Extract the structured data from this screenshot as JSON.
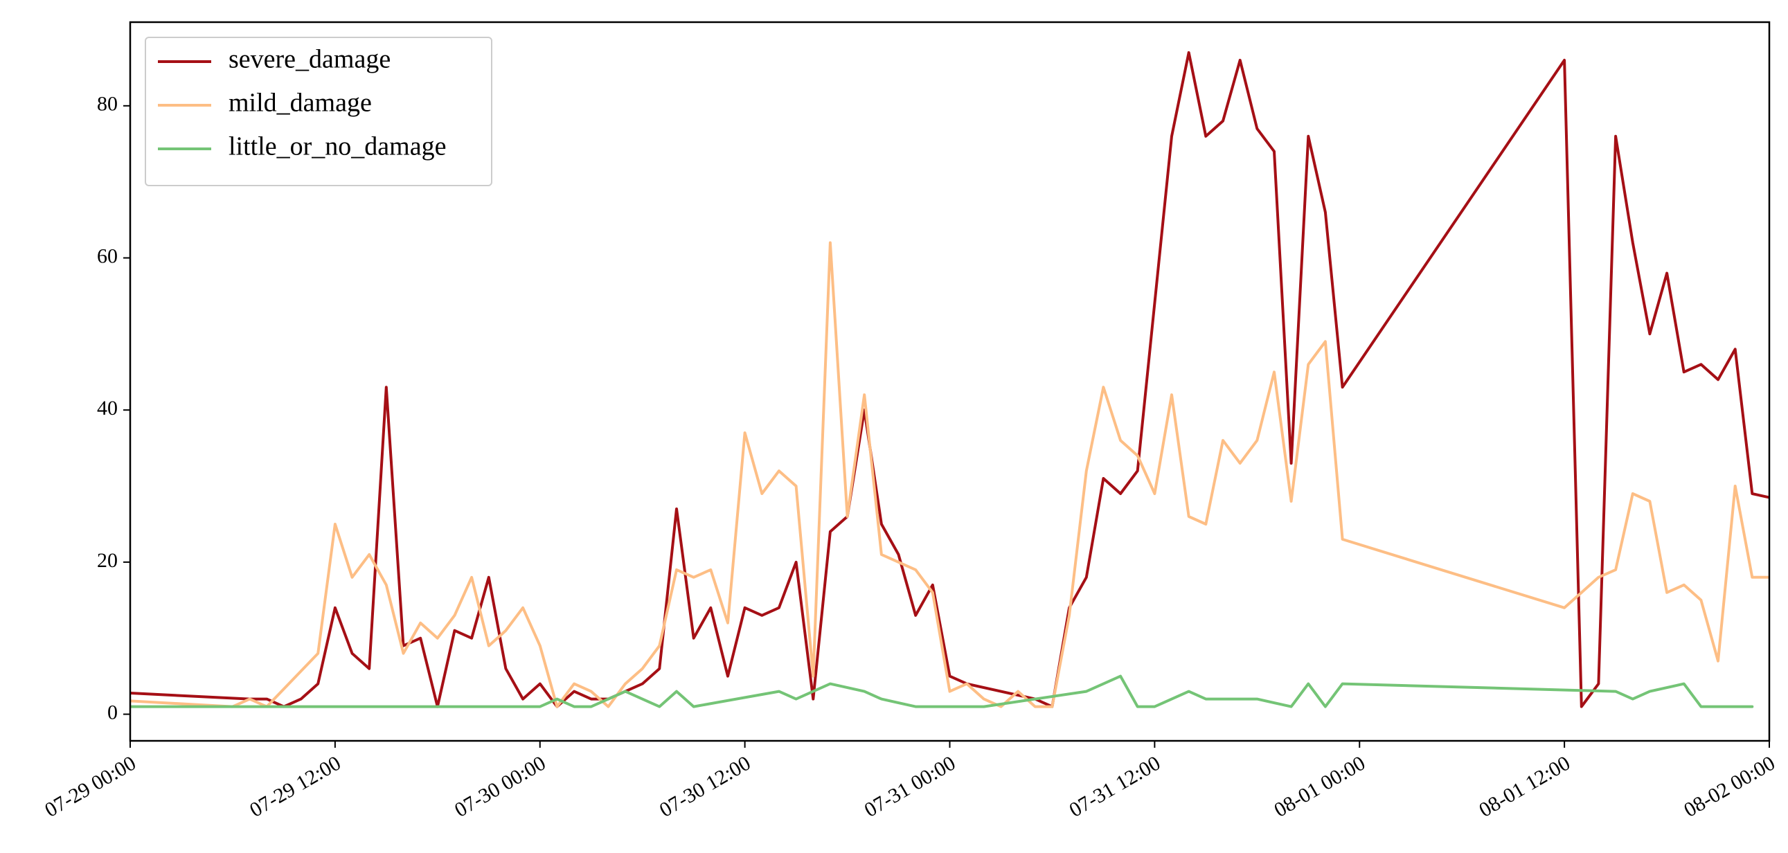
{
  "chart_data": {
    "type": "line",
    "title": "",
    "xlabel": "",
    "ylabel": "",
    "xlim": [
      "2024-07-29 00:00",
      "2024-08-02 00:00"
    ],
    "ylim": [
      -3.5,
      91
    ],
    "x_ticks": [
      {
        "t": "2024-07-29 00:00",
        "label": "07-29 00:00"
      },
      {
        "t": "2024-07-29 12:00",
        "label": "07-29 12:00"
      },
      {
        "t": "2024-07-30 00:00",
        "label": "07-30 00:00"
      },
      {
        "t": "2024-07-30 12:00",
        "label": "07-30 12:00"
      },
      {
        "t": "2024-07-31 00:00",
        "label": "07-31 00:00"
      },
      {
        "t": "2024-07-31 12:00",
        "label": "07-31 12:00"
      },
      {
        "t": "2024-08-01 00:00",
        "label": "08-01 00:00"
      },
      {
        "t": "2024-08-01 12:00",
        "label": "08-01 12:00"
      },
      {
        "t": "2024-08-02 00:00",
        "label": "08-02 00:00"
      }
    ],
    "y_ticks": [
      0,
      20,
      40,
      60,
      80
    ],
    "grid": false,
    "legend": "top-left",
    "series": [
      {
        "name": "severe_damage",
        "color": "#a50f15",
        "points": [
          [
            "2024-07-28 22:00",
            3
          ],
          [
            "2024-07-29 07:00",
            2
          ],
          [
            "2024-07-29 08:00",
            2
          ],
          [
            "2024-07-29 09:00",
            1
          ],
          [
            "2024-07-29 10:00",
            2
          ],
          [
            "2024-07-29 11:00",
            4
          ],
          [
            "2024-07-29 12:00",
            14
          ],
          [
            "2024-07-29 13:00",
            8
          ],
          [
            "2024-07-29 14:00",
            6
          ],
          [
            "2024-07-29 15:00",
            43
          ],
          [
            "2024-07-29 16:00",
            9
          ],
          [
            "2024-07-29 17:00",
            10
          ],
          [
            "2024-07-29 18:00",
            1
          ],
          [
            "2024-07-29 19:00",
            11
          ],
          [
            "2024-07-29 20:00",
            10
          ],
          [
            "2024-07-29 21:00",
            18
          ],
          [
            "2024-07-29 22:00",
            6
          ],
          [
            "2024-07-29 23:00",
            2
          ],
          [
            "2024-07-30 00:00",
            4
          ],
          [
            "2024-07-30 01:00",
            1
          ],
          [
            "2024-07-30 02:00",
            3
          ],
          [
            "2024-07-30 03:00",
            2
          ],
          [
            "2024-07-30 04:00",
            2
          ],
          [
            "2024-07-30 05:00",
            3
          ],
          [
            "2024-07-30 06:00",
            4
          ],
          [
            "2024-07-30 07:00",
            6
          ],
          [
            "2024-07-30 08:00",
            27
          ],
          [
            "2024-07-30 09:00",
            10
          ],
          [
            "2024-07-30 10:00",
            14
          ],
          [
            "2024-07-30 11:00",
            5
          ],
          [
            "2024-07-30 12:00",
            14
          ],
          [
            "2024-07-30 13:00",
            13
          ],
          [
            "2024-07-30 14:00",
            14
          ],
          [
            "2024-07-30 15:00",
            20
          ],
          [
            "2024-07-30 16:00",
            2
          ],
          [
            "2024-07-30 17:00",
            24
          ],
          [
            "2024-07-30 18:00",
            26
          ],
          [
            "2024-07-30 19:00",
            40
          ],
          [
            "2024-07-30 20:00",
            25
          ],
          [
            "2024-07-30 21:00",
            21
          ],
          [
            "2024-07-30 22:00",
            13
          ],
          [
            "2024-07-30 23:00",
            17
          ],
          [
            "2024-07-31 00:00",
            5
          ],
          [
            "2024-07-31 01:00",
            4
          ],
          [
            "2024-07-31 05:00",
            2
          ],
          [
            "2024-07-31 06:00",
            1
          ],
          [
            "2024-07-31 07:00",
            14
          ],
          [
            "2024-07-31 08:00",
            18
          ],
          [
            "2024-07-31 09:00",
            31
          ],
          [
            "2024-07-31 10:00",
            29
          ],
          [
            "2024-07-31 11:00",
            32
          ],
          [
            "2024-07-31 13:00",
            76
          ],
          [
            "2024-07-31 14:00",
            87
          ],
          [
            "2024-07-31 15:00",
            76
          ],
          [
            "2024-07-31 16:00",
            78
          ],
          [
            "2024-07-31 17:00",
            86
          ],
          [
            "2024-07-31 18:00",
            77
          ],
          [
            "2024-07-31 19:00",
            74
          ],
          [
            "2024-07-31 20:00",
            33
          ],
          [
            "2024-07-31 21:00",
            76
          ],
          [
            "2024-07-31 22:00",
            66
          ],
          [
            "2024-07-31 23:00",
            43
          ],
          [
            "2024-08-01 12:00",
            86
          ],
          [
            "2024-08-01 13:00",
            1
          ],
          [
            "2024-08-01 14:00",
            4
          ],
          [
            "2024-08-01 15:00",
            76
          ],
          [
            "2024-08-01 16:00",
            62
          ],
          [
            "2024-08-01 17:00",
            50
          ],
          [
            "2024-08-01 18:00",
            58
          ],
          [
            "2024-08-01 19:00",
            45
          ],
          [
            "2024-08-01 20:00",
            46
          ],
          [
            "2024-08-01 21:00",
            44
          ],
          [
            "2024-08-01 22:00",
            48
          ],
          [
            "2024-08-01 23:00",
            29
          ],
          [
            "2024-08-02 01:00",
            28
          ]
        ]
      },
      {
        "name": "mild_damage",
        "color": "#fdbe85",
        "points": [
          [
            "2024-07-28 22:00",
            2
          ],
          [
            "2024-07-29 06:00",
            1
          ],
          [
            "2024-07-29 07:00",
            2
          ],
          [
            "2024-07-29 08:00",
            1
          ],
          [
            "2024-07-29 11:00",
            8
          ],
          [
            "2024-07-29 12:00",
            25
          ],
          [
            "2024-07-29 13:00",
            18
          ],
          [
            "2024-07-29 14:00",
            21
          ],
          [
            "2024-07-29 15:00",
            17
          ],
          [
            "2024-07-29 16:00",
            8
          ],
          [
            "2024-07-29 17:00",
            12
          ],
          [
            "2024-07-29 18:00",
            10
          ],
          [
            "2024-07-29 19:00",
            13
          ],
          [
            "2024-07-29 20:00",
            18
          ],
          [
            "2024-07-29 21:00",
            9
          ],
          [
            "2024-07-29 22:00",
            11
          ],
          [
            "2024-07-29 23:00",
            14
          ],
          [
            "2024-07-30 00:00",
            9
          ],
          [
            "2024-07-30 01:00",
            1
          ],
          [
            "2024-07-30 02:00",
            4
          ],
          [
            "2024-07-30 03:00",
            3
          ],
          [
            "2024-07-30 04:00",
            1
          ],
          [
            "2024-07-30 05:00",
            4
          ],
          [
            "2024-07-30 06:00",
            6
          ],
          [
            "2024-07-30 07:00",
            9
          ],
          [
            "2024-07-30 08:00",
            19
          ],
          [
            "2024-07-30 09:00",
            18
          ],
          [
            "2024-07-30 10:00",
            19
          ],
          [
            "2024-07-30 11:00",
            12
          ],
          [
            "2024-07-30 12:00",
            37
          ],
          [
            "2024-07-30 13:00",
            29
          ],
          [
            "2024-07-30 14:00",
            32
          ],
          [
            "2024-07-30 15:00",
            30
          ],
          [
            "2024-07-30 16:00",
            5
          ],
          [
            "2024-07-30 17:00",
            62
          ],
          [
            "2024-07-30 18:00",
            26
          ],
          [
            "2024-07-30 19:00",
            42
          ],
          [
            "2024-07-30 20:00",
            21
          ],
          [
            "2024-07-30 21:00",
            20
          ],
          [
            "2024-07-30 22:00",
            19
          ],
          [
            "2024-07-30 23:00",
            16
          ],
          [
            "2024-07-31 00:00",
            3
          ],
          [
            "2024-07-31 01:00",
            4
          ],
          [
            "2024-07-31 02:00",
            2
          ],
          [
            "2024-07-31 03:00",
            1
          ],
          [
            "2024-07-31 04:00",
            3
          ],
          [
            "2024-07-31 05:00",
            1
          ],
          [
            "2024-07-31 06:00",
            1
          ],
          [
            "2024-07-31 07:00",
            13
          ],
          [
            "2024-07-31 08:00",
            32
          ],
          [
            "2024-07-31 09:00",
            43
          ],
          [
            "2024-07-31 10:00",
            36
          ],
          [
            "2024-07-31 11:00",
            34
          ],
          [
            "2024-07-31 12:00",
            29
          ],
          [
            "2024-07-31 13:00",
            42
          ],
          [
            "2024-07-31 14:00",
            26
          ],
          [
            "2024-07-31 15:00",
            25
          ],
          [
            "2024-07-31 16:00",
            36
          ],
          [
            "2024-07-31 17:00",
            33
          ],
          [
            "2024-07-31 18:00",
            36
          ],
          [
            "2024-07-31 19:00",
            45
          ],
          [
            "2024-07-31 20:00",
            28
          ],
          [
            "2024-07-31 21:00",
            46
          ],
          [
            "2024-07-31 22:00",
            49
          ],
          [
            "2024-07-31 23:00",
            23
          ],
          [
            "2024-08-01 12:00",
            14
          ],
          [
            "2024-08-01 14:00",
            18
          ],
          [
            "2024-08-01 15:00",
            19
          ],
          [
            "2024-08-01 16:00",
            29
          ],
          [
            "2024-08-01 17:00",
            28
          ],
          [
            "2024-08-01 18:00",
            16
          ],
          [
            "2024-08-01 19:00",
            17
          ],
          [
            "2024-08-01 20:00",
            15
          ],
          [
            "2024-08-01 21:00",
            7
          ],
          [
            "2024-08-01 22:00",
            30
          ],
          [
            "2024-08-01 23:00",
            18
          ],
          [
            "2024-08-02 01:00",
            18
          ]
        ]
      },
      {
        "name": "little_or_no_damage",
        "color": "#74c476",
        "points": [
          [
            "2024-07-28 22:00",
            1
          ],
          [
            "2024-07-29 06:00",
            1
          ],
          [
            "2024-07-29 22:00",
            1
          ],
          [
            "2024-07-30 00:00",
            1
          ],
          [
            "2024-07-30 01:00",
            2
          ],
          [
            "2024-07-30 02:00",
            1
          ],
          [
            "2024-07-30 03:00",
            1
          ],
          [
            "2024-07-30 05:00",
            3
          ],
          [
            "2024-07-30 07:00",
            1
          ],
          [
            "2024-07-30 08:00",
            3
          ],
          [
            "2024-07-30 09:00",
            1
          ],
          [
            "2024-07-30 14:00",
            3
          ],
          [
            "2024-07-30 15:00",
            2
          ],
          [
            "2024-07-30 17:00",
            4
          ],
          [
            "2024-07-30 19:00",
            3
          ],
          [
            "2024-07-30 20:00",
            2
          ],
          [
            "2024-07-30 22:00",
            1
          ],
          [
            "2024-07-31 02:00",
            1
          ],
          [
            "2024-07-31 08:00",
            3
          ],
          [
            "2024-07-31 10:00",
            5
          ],
          [
            "2024-07-31 11:00",
            1
          ],
          [
            "2024-07-31 12:00",
            1
          ],
          [
            "2024-07-31 14:00",
            3
          ],
          [
            "2024-07-31 15:00",
            2
          ],
          [
            "2024-07-31 18:00",
            2
          ],
          [
            "2024-07-31 20:00",
            1
          ],
          [
            "2024-07-31 21:00",
            4
          ],
          [
            "2024-07-31 22:00",
            1
          ],
          [
            "2024-07-31 23:00",
            4
          ],
          [
            "2024-08-01 15:00",
            3
          ],
          [
            "2024-08-01 16:00",
            2
          ],
          [
            "2024-08-01 17:00",
            3
          ],
          [
            "2024-08-01 19:00",
            4
          ],
          [
            "2024-08-01 20:00",
            1
          ],
          [
            "2024-08-01 23:00",
            1
          ]
        ]
      }
    ]
  }
}
